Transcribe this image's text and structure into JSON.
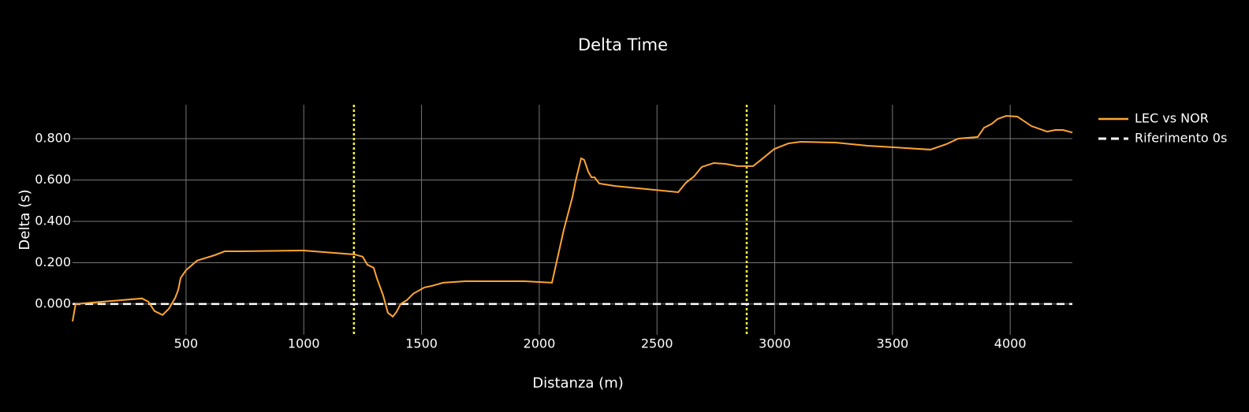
{
  "chart_data": {
    "type": "line",
    "title": "Delta Time",
    "x_label": "Distanza (m)",
    "y_label": "Delta (s)",
    "xlim": [
      18,
      4264
    ],
    "ylim": [
      -0.149,
      0.964
    ],
    "xticks": [
      500,
      1000,
      1500,
      2000,
      2500,
      3000,
      3500,
      4000
    ],
    "yticks": [
      {
        "value": 0,
        "label": "0.000"
      },
      {
        "value": 0.2,
        "label": "0.200"
      },
      {
        "value": 0.4,
        "label": "0.400"
      },
      {
        "value": 0.6,
        "label": "0.600"
      },
      {
        "value": 0.8,
        "label": "0.800"
      }
    ],
    "grid": true,
    "legend": "right",
    "vlines": {
      "x": [
        1213,
        2881
      ],
      "color": "#ffff33"
    },
    "series": [
      {
        "name": "LEC vs NOR",
        "color": "#ffa533",
        "dash": false,
        "x": [
          18,
          31,
          145,
          313,
          340,
          366,
          400,
          427,
          454,
          467,
          477,
          500,
          547,
          621,
          664,
          731,
          999,
          1214,
          1250,
          1270,
          1297,
          1310,
          1337,
          1357,
          1378,
          1394,
          1411,
          1438,
          1465,
          1512,
          1545,
          1592,
          1686,
          1786,
          1937,
          2054,
          2104,
          2141,
          2155,
          2178,
          2191,
          2208,
          2222,
          2235,
          2255,
          2322,
          2590,
          2623,
          2657,
          2690,
          2741,
          2791,
          2841,
          2908,
          2941,
          2998,
          3058,
          3109,
          3259,
          3394,
          3661,
          3728,
          3779,
          3862,
          3889,
          3922,
          3946,
          3983,
          4030,
          4090,
          4157,
          4191,
          4224,
          4264
        ],
        "values": [
          -0.084,
          0,
          0.011,
          0.027,
          0.011,
          -0.034,
          -0.053,
          -0.023,
          0.03,
          0.069,
          0.126,
          0.164,
          0.21,
          0.236,
          0.255,
          0.255,
          0.259,
          0.24,
          0.229,
          0.19,
          0.175,
          0.126,
          0.042,
          -0.042,
          -0.061,
          -0.038,
          0,
          0.019,
          0.05,
          0.08,
          0.088,
          0.103,
          0.11,
          0.11,
          0.11,
          0.103,
          0.358,
          0.518,
          0.598,
          0.705,
          0.697,
          0.64,
          0.613,
          0.613,
          0.583,
          0.571,
          0.541,
          0.587,
          0.617,
          0.663,
          0.682,
          0.678,
          0.667,
          0.667,
          0.697,
          0.75,
          0.777,
          0.785,
          0.781,
          0.766,
          0.747,
          0.773,
          0.8,
          0.808,
          0.853,
          0.872,
          0.895,
          0.91,
          0.907,
          0.861,
          0.834,
          0.842,
          0.842,
          0.83
        ]
      },
      {
        "name": "Riferimento 0s",
        "color": "#ffffff",
        "dash": true,
        "x": [
          18,
          4264
        ],
        "values": [
          0,
          0
        ]
      }
    ]
  }
}
